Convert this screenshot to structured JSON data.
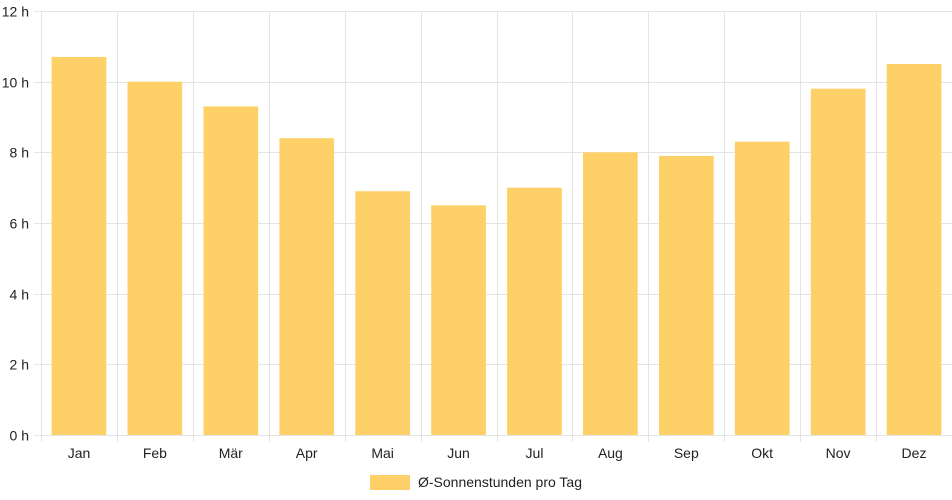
{
  "chart_data": {
    "type": "bar",
    "categories": [
      "Jan",
      "Feb",
      "Mär",
      "Apr",
      "Mai",
      "Jun",
      "Jul",
      "Aug",
      "Sep",
      "Okt",
      "Nov",
      "Dez"
    ],
    "series": [
      {
        "name": "Ø-Sonnenstunden pro Tag",
        "values": [
          10.7,
          10.0,
          9.3,
          8.4,
          6.9,
          6.5,
          7.0,
          8.0,
          7.9,
          8.3,
          9.8,
          10.5
        ],
        "color": "#fdd168"
      }
    ],
    "y_ticks": [
      "0 h",
      "2 h",
      "4 h",
      "6 h",
      "8 h",
      "10 h",
      "12 h"
    ],
    "ylim": [
      0,
      12
    ],
    "y_unit_suffix": " h",
    "grid": true,
    "legend_position": "bottom-center",
    "title": "",
    "xlabel": "",
    "ylabel": ""
  }
}
